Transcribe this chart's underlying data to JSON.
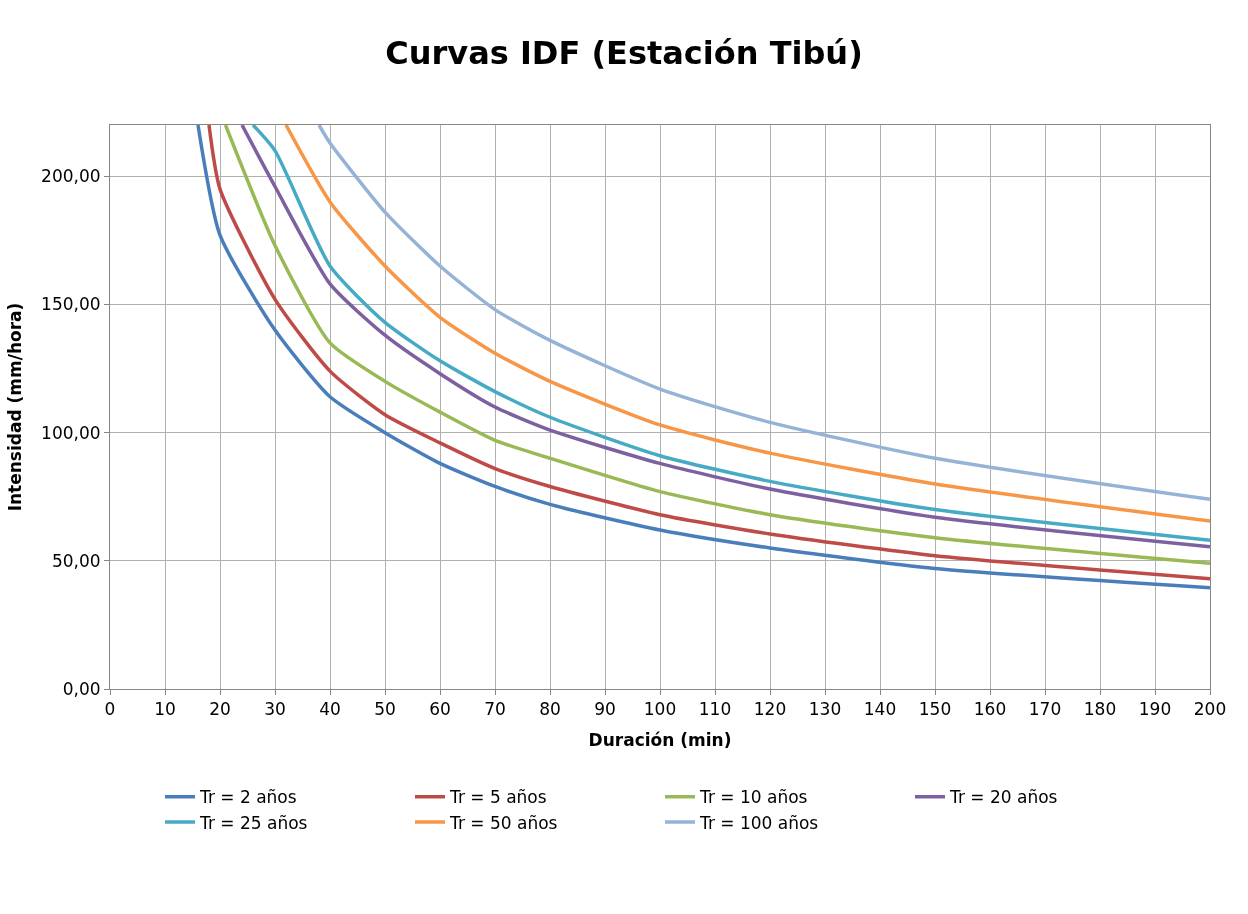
{
  "chart_data": {
    "type": "line",
    "title": "Curvas IDF (Estación Tibú)",
    "xlabel": "Duración (min)",
    "ylabel": "Intensidad (mm/hora)",
    "xlim": [
      0,
      200
    ],
    "xticks": [
      0,
      10,
      20,
      30,
      40,
      50,
      60,
      70,
      80,
      90,
      100,
      110,
      120,
      130,
      140,
      150,
      160,
      170,
      180,
      190,
      200
    ],
    "ylim": [
      0,
      220
    ],
    "yticks": [
      {
        "value": 0,
        "label": "0,00"
      },
      {
        "value": 50,
        "label": "50,00"
      },
      {
        "value": 100,
        "label": "100,00"
      },
      {
        "value": 150,
        "label": "150,00"
      },
      {
        "value": 200,
        "label": "200,00"
      }
    ],
    "grid": true,
    "legend": "bottom",
    "marker": "none",
    "line_style": "solid",
    "series": [
      {
        "name": "Tr = 2 años",
        "color": "#4a7ebb",
        "x": [
          16,
          20,
          30,
          40,
          50,
          60,
          70,
          80,
          100,
          120,
          150,
          200
        ],
        "values": [
          220,
          177,
          140,
          114,
          100,
          88,
          79,
          72,
          62,
          55,
          47,
          39.5
        ]
      },
      {
        "name": "Tr = 5 años",
        "color": "#be4b48",
        "x": [
          18,
          20,
          30,
          40,
          50,
          60,
          70,
          80,
          100,
          120,
          150,
          200
        ],
        "values": [
          220,
          195,
          152,
          124,
          107,
          96,
          86,
          79,
          68,
          60.5,
          52,
          43
        ]
      },
      {
        "name": "Tr = 10 años",
        "color": "#98b954",
        "x": [
          21,
          30,
          40,
          50,
          60,
          70,
          80,
          100,
          120,
          150,
          200
        ],
        "values": [
          220,
          173,
          135,
          120,
          108,
          97,
          90,
          77,
          68,
          59,
          49
        ]
      },
      {
        "name": "Tr = 20 años",
        "color": "#7d60a0",
        "x": [
          24,
          30,
          40,
          50,
          60,
          70,
          80,
          100,
          120,
          150,
          200
        ],
        "values": [
          220,
          196,
          158,
          138,
          123,
          110,
          101,
          88,
          78,
          67,
          55.5
        ]
      },
      {
        "name": "Tr = 25 años",
        "color": "#46aac5",
        "x": [
          26,
          30,
          40,
          50,
          60,
          70,
          80,
          100,
          120,
          150,
          200
        ],
        "values": [
          220,
          210,
          165,
          143,
          128,
          116,
          106,
          91,
          81,
          70,
          58
        ]
      },
      {
        "name": "Tr = 50 años",
        "color": "#f79646",
        "x": [
          32,
          40,
          50,
          60,
          70,
          80,
          100,
          120,
          150,
          200
        ],
        "values": [
          220,
          190,
          165,
          145,
          131,
          120,
          103,
          92,
          80,
          65.5
        ]
      },
      {
        "name": "Tr = 100 años",
        "color": "#95b3d7",
        "x": [
          38,
          40,
          50,
          60,
          70,
          80,
          100,
          120,
          150,
          200
        ],
        "values": [
          220,
          213,
          186,
          165,
          148,
          136,
          117,
          104,
          90,
          74
        ]
      }
    ]
  }
}
